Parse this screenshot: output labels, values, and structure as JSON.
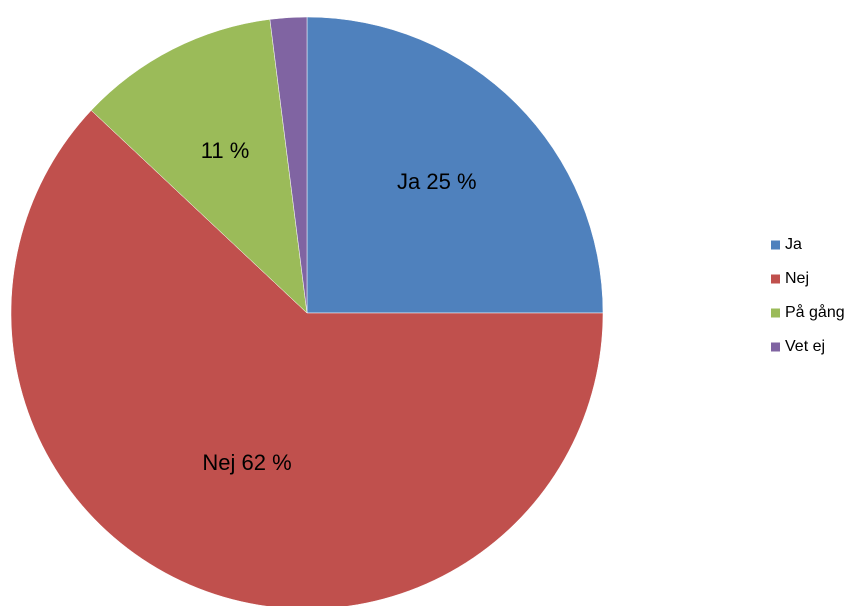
{
  "chart_data": {
    "type": "pie",
    "categories": [
      "Ja",
      "Nej",
      "På gång",
      "Vet ej"
    ],
    "values": [
      25,
      62,
      11,
      2
    ],
    "unit": "%",
    "colors": [
      "#4F81BD",
      "#C0504D",
      "#9BBB59",
      "#8064A2"
    ],
    "slice_labels": [
      "Ja 25 %",
      "Nej 62 %",
      "11 %",
      ""
    ],
    "legend": {
      "position": "right",
      "items": [
        "Ja",
        "Nej",
        "På gång",
        "Vet ej"
      ]
    }
  }
}
